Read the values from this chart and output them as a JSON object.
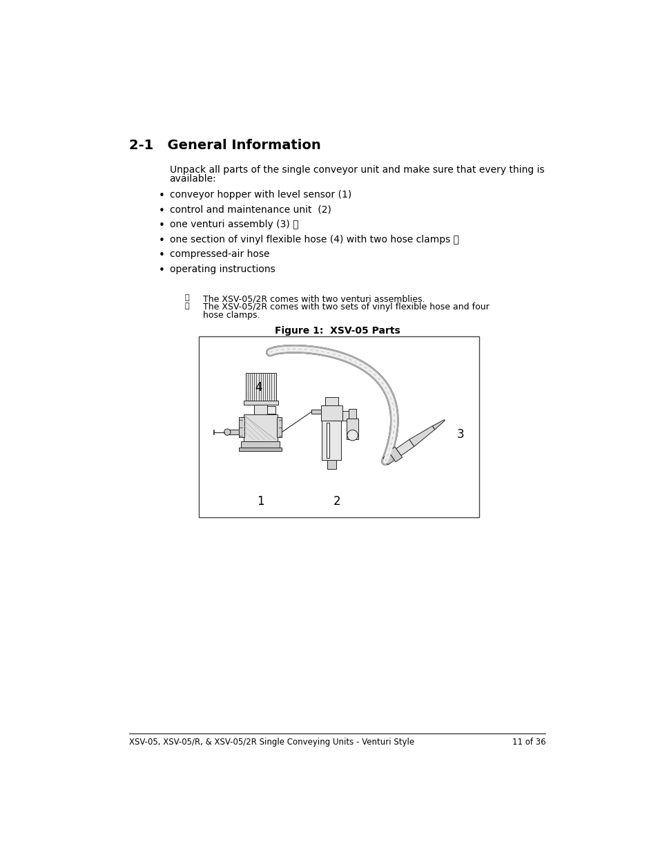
{
  "title": "2-1   General Information",
  "intro_text": "Unpack all parts of the single conveyor unit and make sure that every thing is\navailable:",
  "bullet_items": [
    "conveyor hopper with level sensor (1)",
    "control and maintenance unit  (2)",
    "one venturi assembly (3) ⓘ",
    "one section of vinyl flexible hose (4) with two hose clamps ⓙ",
    "compressed-air hose",
    "operating instructions"
  ],
  "footnote1_sym": "ⓘ",
  "footnote1_text": "The XSV-05/2R comes with two venturi assemblies.",
  "footnote2_sym": "ⓙ",
  "footnote2_text": "The XSV-05/2R comes with two sets of vinyl flexible hose and four\nhose clamps.",
  "figure_caption": "Figure 1:  XSV-05 Parts",
  "footer_text": "XSV-05, XSV-05/R, & XSV-05/2R Single Conveying Units - Venturi Style",
  "footer_page": "11 of 36",
  "bg_color": "#ffffff",
  "text_color": "#000000",
  "title_fontsize": 14,
  "body_fontsize": 10,
  "footnote_fontsize": 9
}
